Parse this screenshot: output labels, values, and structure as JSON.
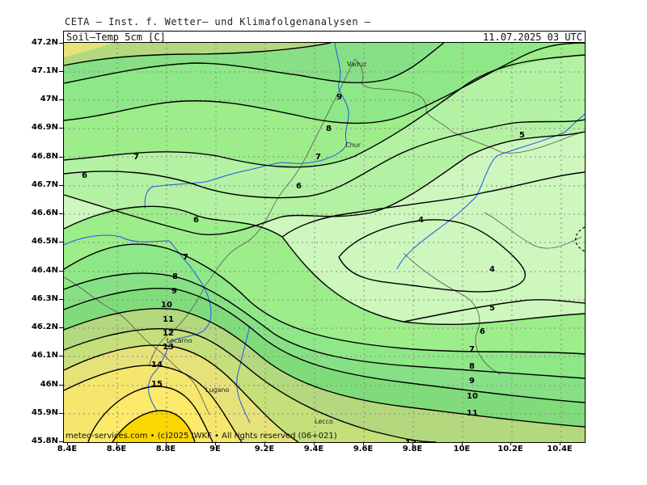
{
  "header": {
    "source_line": "CETA — Inst. f. Wetter— und Klimafolgenanalysen —",
    "parameter": "Soil—Temp_5cm_[C]",
    "valid_time": "11.07.2025 03 UTC"
  },
  "footer": {
    "credit": "meteo-services.com • (c)2025 IWKF • All rights reserved (06+021)"
  },
  "axes": {
    "lat_ticks": [
      "47.2N",
      "47.1N",
      "47N",
      "46.9N",
      "46.8N",
      "46.7N",
      "46.6N",
      "46.5N",
      "46.4N",
      "46.3N",
      "46.2N",
      "46.1N",
      "46N",
      "45.9N",
      "45.8N"
    ],
    "lon_ticks": [
      "8.4E",
      "8.6E",
      "8.8E",
      "9E",
      "9.2E",
      "9.4E",
      "9.6E",
      "9.8E",
      "10E",
      "10.2E",
      "10.4E"
    ]
  },
  "places": {
    "vaduz": "Vaduz",
    "chur": "Chur",
    "locarno": "Locarno",
    "lugano": "Lugano",
    "lecco": "Lecco"
  },
  "isolines": {
    "l4a": "4",
    "l4b": "4",
    "l5a": "5",
    "l5b": "5",
    "l6a": "6",
    "l6b": "6",
    "l6c": "6",
    "l6d": "6",
    "l7a": "7",
    "l7b": "7",
    "l7c": "7",
    "l7d": "7",
    "l8a": "8",
    "l8b": "8",
    "l8c": "8",
    "l9a": "9",
    "l9b": "9",
    "l9c": "9",
    "l10a": "10",
    "l10b": "10",
    "l11a": "11",
    "l11b": "11",
    "l12a": "12",
    "l12b": "12",
    "l13": "13",
    "l14": "14",
    "l15": "15"
  },
  "colors": {
    "t4": "#cdf7bd",
    "t5": "#b3f2a3",
    "t6": "#9ded8b",
    "t7": "#8ee887",
    "t8": "#87e085",
    "t9": "#80dc7a",
    "t10": "#b3d87e",
    "t11": "#c5df7a",
    "t12": "#e6e27a",
    "t13": "#f5e66e",
    "t14": "#fde96a",
    "t15": "#fcd600",
    "river": "#2255ee",
    "border": "#555555"
  }
}
